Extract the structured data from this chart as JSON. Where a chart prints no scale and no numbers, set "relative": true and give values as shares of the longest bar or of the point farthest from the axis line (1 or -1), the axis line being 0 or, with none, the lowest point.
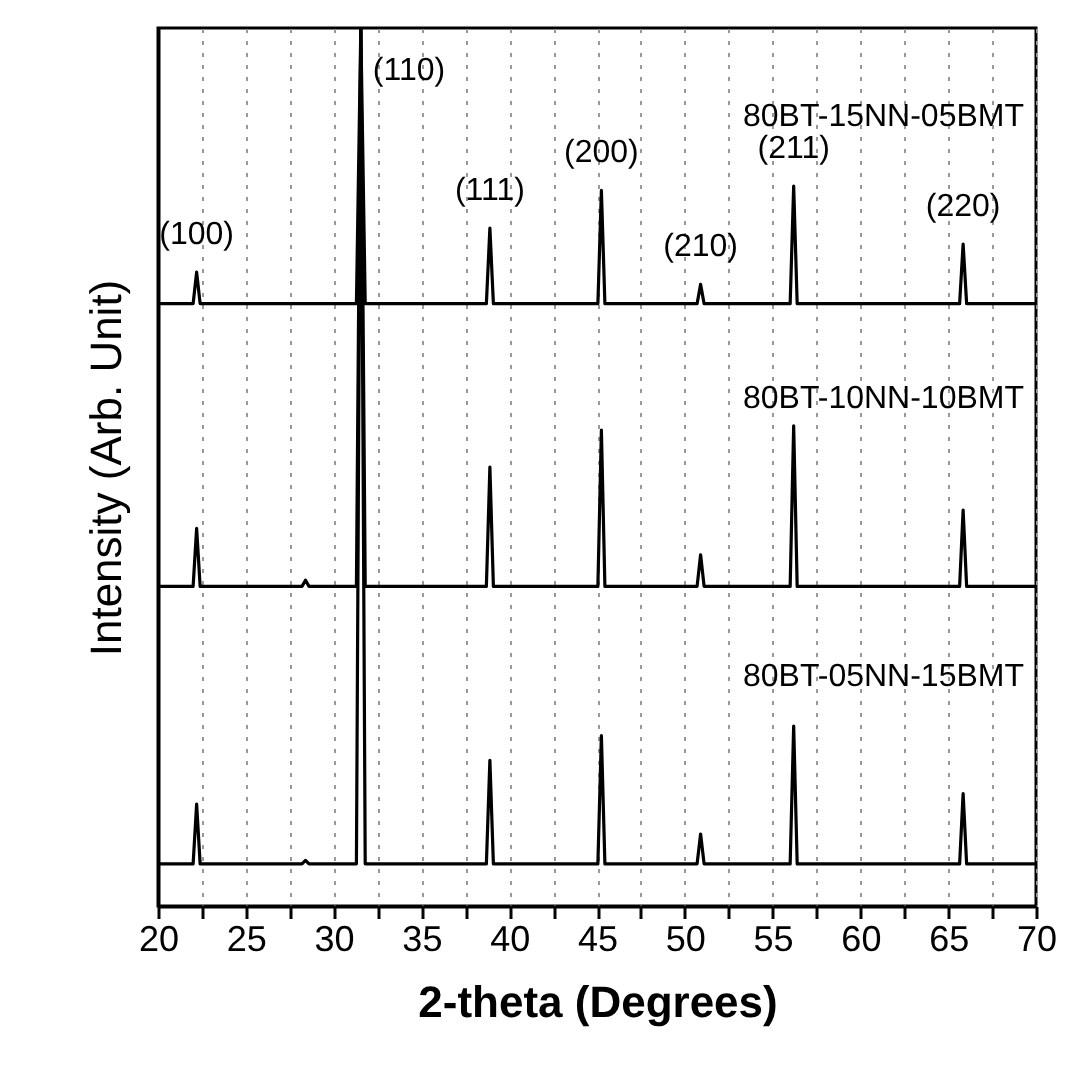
{
  "chart_data": {
    "type": "line",
    "xlabel": "2-theta (Degrees)",
    "ylabel": "Intensity (Arb. Unit)",
    "relative": true,
    "x": [
      20,
      22.0,
      22.2,
      22.4,
      28.2,
      28.4,
      28.6,
      31.3,
      31.55,
      31.8,
      38.7,
      38.9,
      39.1,
      45.05,
      45.25,
      45.45,
      50.7,
      50.9,
      51.1,
      56.0,
      56.2,
      56.4,
      65.65,
      65.85,
      66.05,
      70
    ],
    "xlim": [
      20,
      70
    ],
    "xticks": [
      20,
      {
        "value": 22.5,
        "label": null
      },
      25,
      {
        "value": 27.5,
        "label": null
      },
      30,
      {
        "value": 32.5,
        "label": null
      },
      35,
      {
        "value": 37.5,
        "label": null
      },
      40,
      {
        "value": 42.5,
        "label": null
      },
      45,
      {
        "value": 47.5,
        "label": null
      },
      50,
      {
        "value": 52.5,
        "label": null
      },
      55,
      {
        "value": 57.5,
        "label": null
      },
      60,
      {
        "value": 62.5,
        "label": null
      },
      65,
      {
        "value": 67.5,
        "label": null
      },
      70
    ],
    "series": [
      {
        "name": "80BT-15NN-05BMT",
        "color": "#000000",
        "values": [
          0.686,
          0.686,
          0.722,
          0.686,
          0.686,
          0.686,
          0.686,
          0.686,
          1,
          0.686,
          0.686,
          0.772,
          0.686,
          0.686,
          0.815,
          0.686,
          0.686,
          0.708,
          0.686,
          0.686,
          0.82,
          0.686,
          0.686,
          0.754,
          0.686,
          0.686
        ]
      },
      {
        "name": "80BT-10NN-10BMT",
        "color": "#000000",
        "values": [
          0.364,
          0.364,
          0.43,
          0.364,
          0.364,
          0.371,
          0.364,
          0.364,
          1,
          0.364,
          0.364,
          0.5,
          0.364,
          0.364,
          0.542,
          0.364,
          0.364,
          0.4,
          0.364,
          0.364,
          0.547,
          0.364,
          0.364,
          0.451,
          0.364,
          0.364
        ]
      },
      {
        "name": "80BT-05NN-15BMT",
        "color": "#000000",
        "values": [
          0.048,
          0.048,
          0.116,
          0.048,
          0.048,
          0.052,
          0.048,
          0.048,
          1,
          0.048,
          0.048,
          0.166,
          0.048,
          0.048,
          0.194,
          0.048,
          0.048,
          0.082,
          0.048,
          0.048,
          0.205,
          0.048,
          0.048,
          0.128,
          0.048,
          0.048
        ]
      }
    ],
    "annotations": [
      {
        "text": "(100)",
        "x": 22.2,
        "y": 0.722
      },
      {
        "text": "(110)",
        "x": 31.55,
        "y": 1
      },
      {
        "text": "(111)",
        "x": 38.9,
        "y": 0.772
      },
      {
        "text": "(200)",
        "x": 45.25,
        "y": 0.815
      },
      {
        "text": "(210)",
        "x": 50.9,
        "y": 0.708
      },
      {
        "text": "(211)",
        "x": 56.2,
        "y": 0.82
      },
      {
        "text": "(220)",
        "x": 65.85,
        "y": 0.754
      }
    ],
    "grid": "x",
    "legend": false,
    "marker": "none",
    "line_style": "solid",
    "tick_labels": "x"
  }
}
